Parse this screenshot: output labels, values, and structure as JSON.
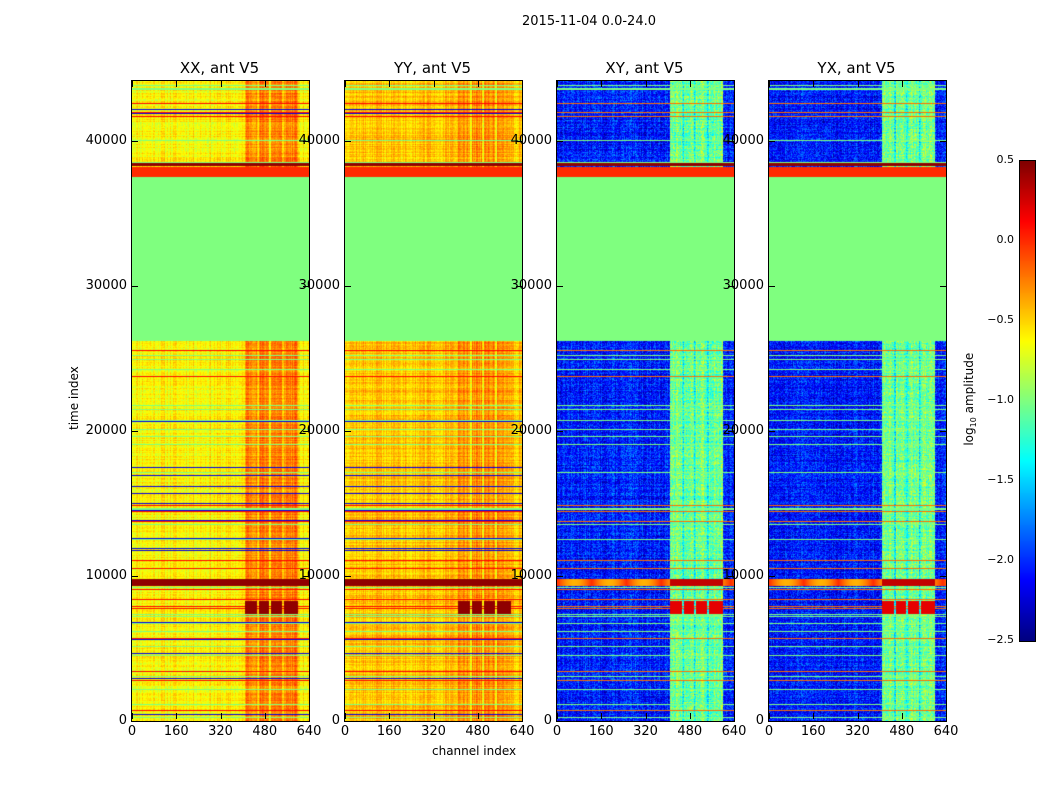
{
  "chart_data": {
    "type": "heatmap",
    "title": "2015-11-04 0.0-24.0",
    "xlabel": "channel index",
    "ylabel": "time index",
    "xlim": [
      0,
      640
    ],
    "ylim": [
      0,
      44150
    ],
    "xticks": [
      "0",
      "160",
      "320",
      "480",
      "640"
    ],
    "yticks": [
      "0",
      "10000",
      "20000",
      "30000",
      "40000"
    ],
    "panels": [
      {
        "title": "XX, ant V5",
        "baseline_log_amp": -0.6,
        "active_channel_range": [
          410,
          600
        ],
        "active_log_amp": -0.25,
        "strong_band_log_amp": 0.45
      },
      {
        "title": "YY, ant V5",
        "baseline_log_amp": -0.45,
        "active_channel_range": [
          410,
          600
        ],
        "active_log_amp": -0.3,
        "strong_band_log_amp": 0.45
      },
      {
        "title": "XY, ant V5",
        "baseline_log_amp": -2.05,
        "active_channel_range": [
          410,
          600
        ],
        "active_log_amp": -1.05,
        "strong_band_log_amp": 0.2
      },
      {
        "title": "YX, ant V5",
        "baseline_log_amp": -2.05,
        "active_channel_range": [
          410,
          600
        ],
        "active_log_amp": -1.05,
        "strong_band_log_amp": 0.2
      }
    ],
    "flagged_time_range": [
      26200,
      37500
    ],
    "flagged_log_amp": -1.0,
    "bright_time_bands": [
      [
        37500,
        38200
      ],
      [
        9300,
        9800
      ],
      [
        7500,
        8200
      ]
    ],
    "colorbar": {
      "label": "log10 amplitude",
      "colormap": "jet",
      "range": [
        -2.5,
        0.5
      ],
      "ticks": [
        "0.5",
        "0.0",
        "−0.5",
        "−1.0",
        "−1.5",
        "−2.0",
        "−2.5"
      ]
    }
  }
}
